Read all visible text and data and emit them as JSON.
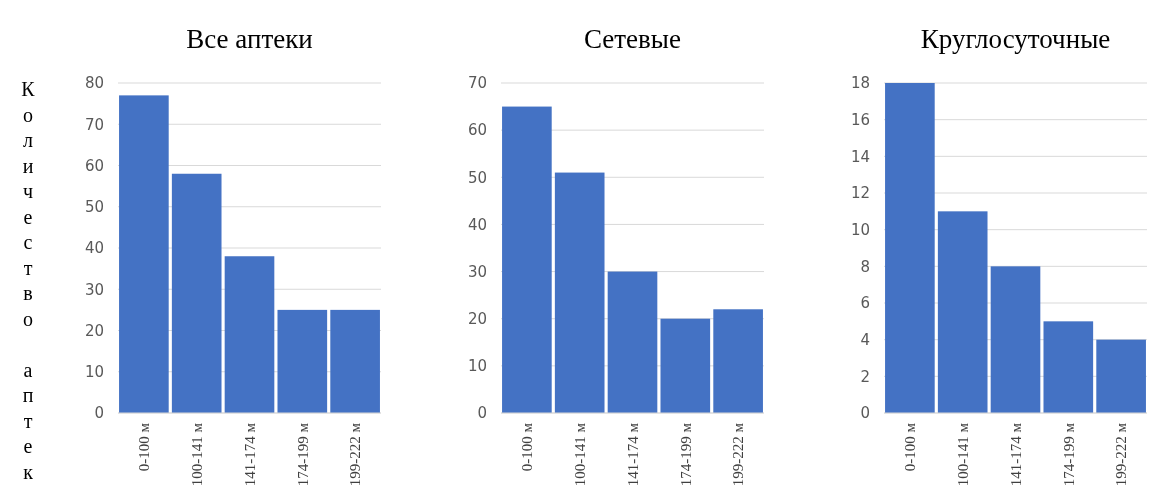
{
  "chart_data": [
    {
      "type": "bar",
      "title": "Все аптеки",
      "ylabel": "Количество аптек",
      "categories": [
        "0-100 м",
        "100-141 м",
        "141-174 м",
        "174-199 м",
        "199-222 м"
      ],
      "values": [
        77,
        58,
        38,
        25,
        25
      ],
      "color": "#4472c4",
      "ylim": [
        0,
        80
      ],
      "yticks": [
        0,
        10,
        20,
        30,
        40,
        50,
        60,
        70,
        80
      ],
      "grid": "y"
    },
    {
      "type": "bar",
      "title": "Сетевые",
      "categories": [
        "0-100 м",
        "100-141 м",
        "141-174 м",
        "174-199 м",
        "199-222 м"
      ],
      "values": [
        65,
        51,
        30,
        20,
        22
      ],
      "color": "#4472c4",
      "ylim": [
        0,
        70
      ],
      "yticks": [
        0,
        10,
        20,
        30,
        40,
        50,
        60,
        70
      ],
      "grid": "y"
    },
    {
      "type": "bar",
      "title": "Круглосуточные",
      "categories": [
        "0-100 м",
        "100-141 м",
        "141-174 м",
        "174-199 м",
        "199-222 м"
      ],
      "values": [
        18,
        11,
        8,
        5,
        4
      ],
      "color": "#4472c4",
      "ylim": [
        0,
        18
      ],
      "yticks": [
        0,
        2,
        4,
        6,
        8,
        10,
        12,
        14,
        16,
        18
      ],
      "grid": "y"
    }
  ]
}
